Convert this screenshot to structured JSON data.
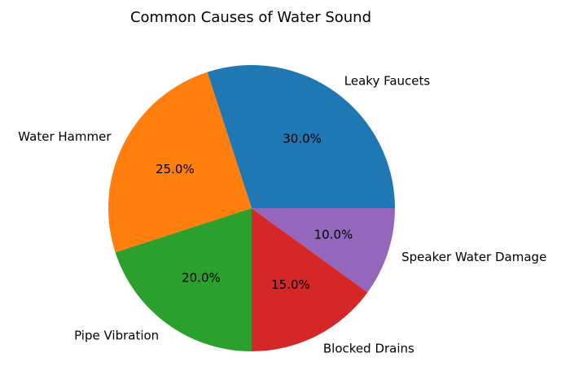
{
  "chart_data": {
    "type": "pie",
    "title": "Common Causes of Water Sound",
    "start_angle_deg": 0,
    "direction": "counterclockwise",
    "slices": [
      {
        "label": "Leaky Faucets",
        "value": 30.0,
        "pct_label": "30.0%",
        "color": "#1f77b4"
      },
      {
        "label": "Water Hammer",
        "value": 25.0,
        "pct_label": "25.0%",
        "color": "#ff7f0e"
      },
      {
        "label": "Pipe Vibration",
        "value": 20.0,
        "pct_label": "20.0%",
        "color": "#2ca02c"
      },
      {
        "label": "Blocked Drains",
        "value": 15.0,
        "pct_label": "15.0%",
        "color": "#d62728"
      },
      {
        "label": "Speaker Water Damage",
        "value": 10.0,
        "pct_label": "10.0%",
        "color": "#9467bd"
      }
    ]
  }
}
